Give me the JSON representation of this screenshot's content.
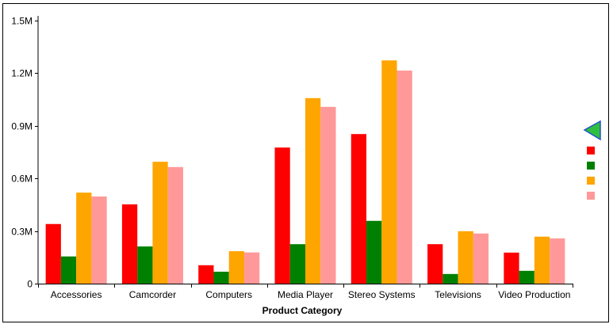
{
  "chart_data": {
    "type": "bar",
    "title": "",
    "xlabel": "Product Category",
    "ylabel": "",
    "ylim": [
      0,
      1500000
    ],
    "yticks": [
      {
        "value": 0,
        "label": "0"
      },
      {
        "value": 300000,
        "label": "0.3M"
      },
      {
        "value": 600000,
        "label": "0.6M"
      },
      {
        "value": 900000,
        "label": "0.9M"
      },
      {
        "value": 1200000,
        "label": "1.2M"
      },
      {
        "value": 1500000,
        "label": "1.5M"
      }
    ],
    "categories": [
      "Accessories",
      "Camcorder",
      "Computers",
      "Media Player",
      "Stereo Systems",
      "Televisions",
      "Video Production"
    ],
    "series": [
      {
        "color": "#ff0000",
        "values": [
          340000,
          452000,
          105000,
          776000,
          853000,
          225000,
          177000
        ]
      },
      {
        "color": "#008000",
        "values": [
          155000,
          212000,
          68000,
          225000,
          358000,
          55000,
          73000
        ]
      },
      {
        "color": "#ffa500",
        "values": [
          519000,
          695000,
          185000,
          1058000,
          1273000,
          299000,
          268000
        ]
      },
      {
        "color": "#ff9999",
        "values": [
          497000,
          665000,
          178000,
          1008000,
          1215000,
          286000,
          258000
        ]
      }
    ],
    "grid": false,
    "legend": {
      "position": "right",
      "labels_visible": false,
      "scroll_icon": "left-triangle-icon"
    }
  }
}
